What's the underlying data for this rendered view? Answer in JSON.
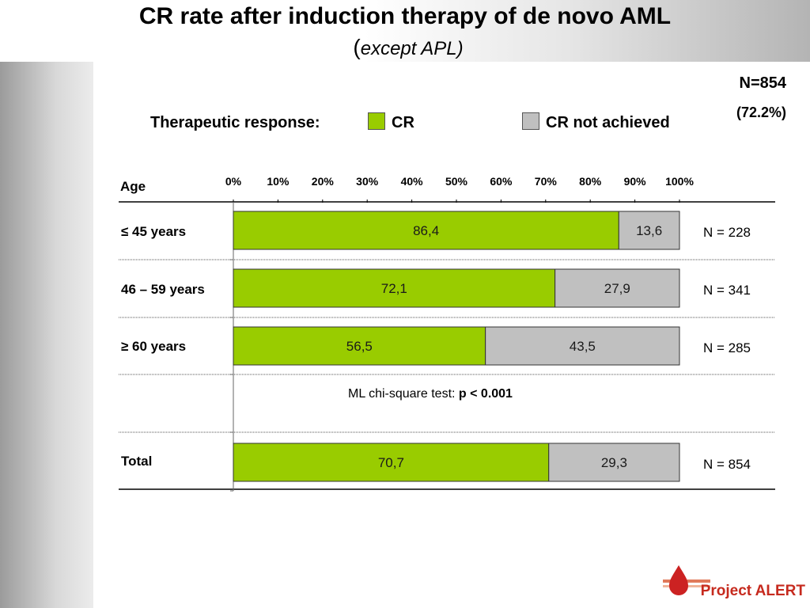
{
  "slide": {
    "title": "CR rate after induction therapy of de novo AML",
    "subtitle_paren": "(",
    "subtitle_text": "except APL)",
    "n_total": "N=854",
    "n_pct": "(72.2%)",
    "logo_text": "Project ALERT"
  },
  "legend": {
    "title": "Therapeutic response:",
    "items": [
      {
        "label": "CR",
        "color": "#99cc00"
      },
      {
        "label": "CR not achieved",
        "color": "#c0c0c0"
      }
    ]
  },
  "stat": {
    "text": "ML chi-square test: ",
    "bold": "p < 0.001"
  },
  "chart_data": {
    "type": "bar",
    "orientation": "horizontal",
    "stacked": true,
    "row_header": "Age",
    "xlim": [
      0,
      100
    ],
    "xticks": [
      "0%",
      "10%",
      "20%",
      "30%",
      "40%",
      "50%",
      "60%",
      "70%",
      "80%",
      "90%",
      "100%"
    ],
    "categories": [
      "≤ 45 years",
      "46 – 59 years",
      "≥ 60 years",
      "Total"
    ],
    "series": [
      {
        "name": "CR",
        "color": "#99cc00",
        "values": [
          86.4,
          72.1,
          56.5,
          70.7
        ],
        "labels": [
          "86,4",
          "72,1",
          "56,5",
          "70,7"
        ]
      },
      {
        "name": "CR not achieved",
        "color": "#c0c0c0",
        "values": [
          13.6,
          27.9,
          43.5,
          29.3
        ],
        "labels": [
          "13,6",
          "27,9",
          "43,5",
          "29,3"
        ]
      }
    ],
    "n_labels": [
      "N = 228",
      "N = 341",
      "N = 285",
      "N = 854"
    ],
    "grid": false
  }
}
